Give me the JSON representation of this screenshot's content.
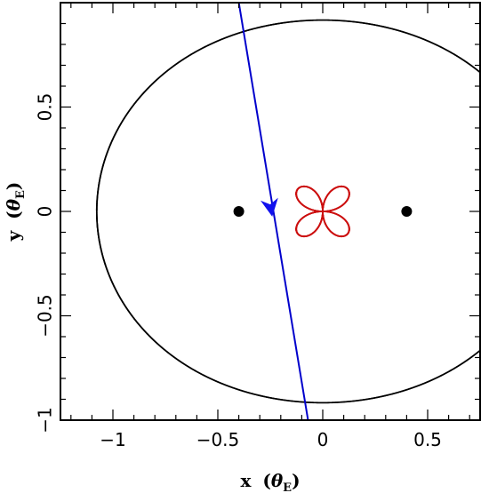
{
  "chart_data": {
    "type": "scatter",
    "title": "",
    "xlabel": {
      "prefix": "x",
      "open": "(",
      "symbol": "θ",
      "subscript": "E",
      "close": ")"
    },
    "ylabel": {
      "prefix": "y",
      "open": "(",
      "symbol": "θ",
      "subscript": "E",
      "close": ")"
    },
    "xlim": [
      -1.25,
      0.75
    ],
    "ylim": [
      -1.0,
      1.0
    ],
    "x_ticks": [
      {
        "value": -1,
        "label": "−1"
      },
      {
        "value": -0.5,
        "label": "−0.5"
      },
      {
        "value": 0,
        "label": "0"
      },
      {
        "value": 0.5,
        "label": "0.5"
      }
    ],
    "y_ticks": [
      {
        "value": -1,
        "label": "−1"
      },
      {
        "value": -0.5,
        "label": "−0.5"
      },
      {
        "value": 0,
        "label": "0"
      },
      {
        "value": 0.5,
        "label": "0.5"
      }
    ],
    "grid": false,
    "legend": "none",
    "lens_masses": [
      {
        "x": -0.4,
        "y": 0.0
      },
      {
        "x": 0.4,
        "y": 0.0
      }
    ],
    "source_trajectory": {
      "start": {
        "x": -0.4,
        "y": 1.0
      },
      "end": {
        "x": -0.07,
        "y": -1.0
      },
      "arrow_at": {
        "x": -0.245,
        "y": 0.0
      }
    },
    "colors": {
      "critical_curve": "#000000",
      "caustic": "#cc1111",
      "trajectory": "#0000cc",
      "arrow": "#1111ee",
      "lens": "#000000"
    }
  }
}
